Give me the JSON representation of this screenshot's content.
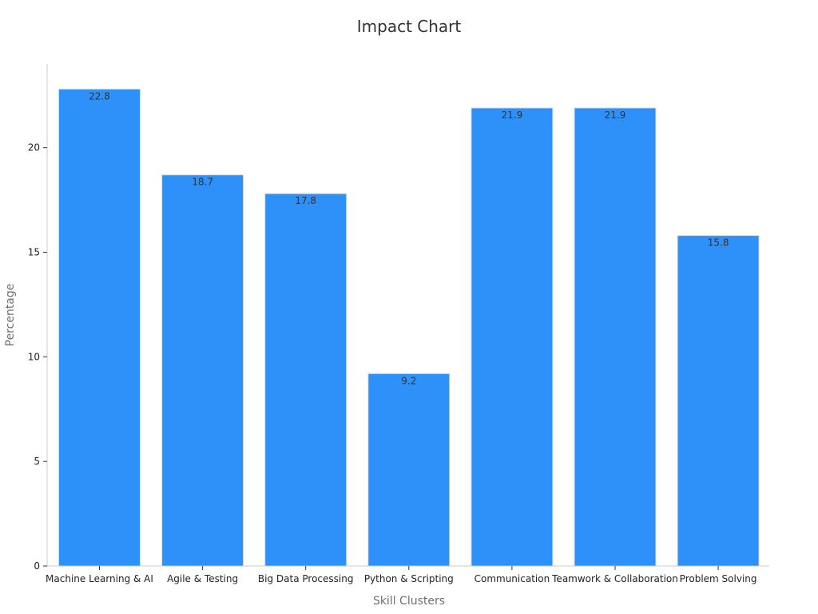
{
  "chart_data": {
    "type": "bar",
    "title": "Impact Chart",
    "xlabel": "Skill Clusters",
    "ylabel": "Percentage",
    "categories": [
      "Machine Learning & AI",
      "Agile & Testing",
      "Big Data Processing",
      "Python & Scripting",
      "Communication",
      "Teamwork & Collaboration",
      "Problem Solving"
    ],
    "values": [
      22.8,
      18.7,
      17.8,
      9.2,
      21.9,
      21.9,
      15.8
    ],
    "data_labels": [
      "22.8",
      "18.7",
      "17.8",
      "9.2",
      "21.9",
      "21.9",
      "15.8"
    ],
    "ylim": [
      0,
      24
    ],
    "yticks": [
      0,
      5,
      10,
      15,
      20
    ],
    "grid": false,
    "legend": "none",
    "bar_color": "#2e91f9",
    "bar_edge_color": "#dddddd"
  }
}
